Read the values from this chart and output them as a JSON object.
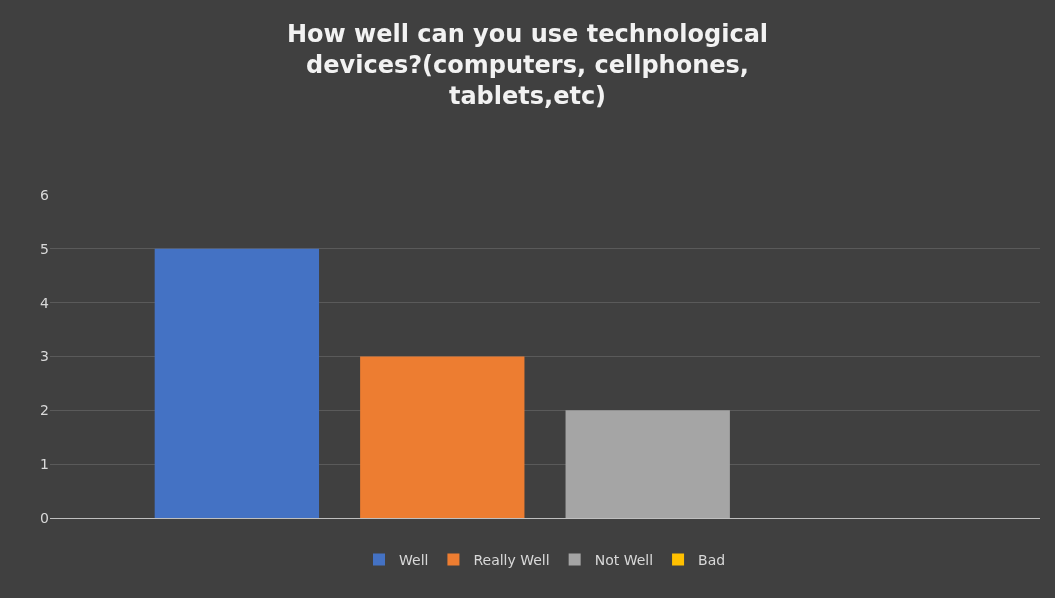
{
  "chart_data": {
    "type": "bar",
    "title": "How well can you use technological devices?(computers, cellphones, tablets,etc)",
    "categories": [
      null
    ],
    "series": [
      {
        "name": "Well",
        "color": "#4472c4",
        "values": [
          5
        ]
      },
      {
        "name": "Really Well",
        "color": "#ed7d31",
        "values": [
          3
        ]
      },
      {
        "name": "Not Well",
        "color": "#a5a5a5",
        "values": [
          2
        ]
      },
      {
        "name": "Bad",
        "color": "#ffc000",
        "values": [
          0
        ]
      }
    ],
    "ylim": [
      0,
      6
    ],
    "yticks": [
      0,
      1,
      2,
      3,
      4,
      5,
      6
    ],
    "grid": "y",
    "legend": "bottom",
    "tick_labels": "y"
  }
}
